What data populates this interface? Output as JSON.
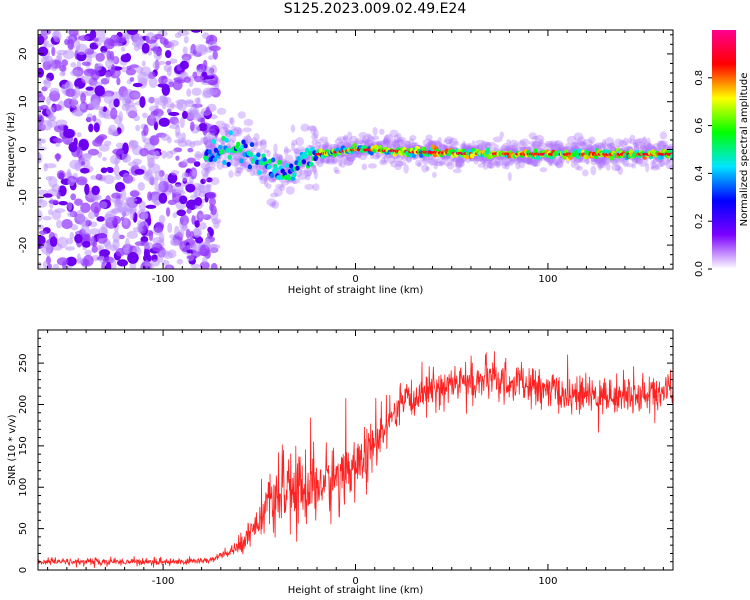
{
  "title": "S125.2023.009.02.49.E24",
  "chart_data": [
    {
      "type": "heatmap",
      "xlabel": "Height of straight line (km)",
      "ylabel": "Frequency (Hz)",
      "xlim": [
        -165,
        165
      ],
      "ylim": [
        -25,
        25
      ],
      "xticks": [
        -100,
        0,
        100
      ],
      "yticks": [
        -20,
        -10,
        0,
        10,
        20
      ],
      "colorbar": {
        "label": "Normalized spectral amplitude",
        "range": [
          0,
          1
        ],
        "ticks": [
          0.0,
          0.2,
          0.4,
          0.6,
          0.8
        ],
        "tick_labels": [
          "0.0",
          "0.2",
          "0.4",
          "0.6",
          "0.8"
        ],
        "colormap": [
          "#ffffff",
          "#7b00ff",
          "#0000ff",
          "#00e5ff",
          "#00ff00",
          "#ffff00",
          "#ff0000",
          "#ff0090"
        ]
      },
      "features": {
        "noise_region_x": [
          -165,
          -78
        ],
        "signal_track": [
          {
            "x": -75,
            "y": 0.0
          },
          {
            "x": -65,
            "y": 0.5
          },
          {
            "x": -55,
            "y": -1.0
          },
          {
            "x": -45,
            "y": -4.0
          },
          {
            "x": -35,
            "y": -5.0
          },
          {
            "x": -28,
            "y": -2.0
          },
          {
            "x": -20,
            "y": -1.0
          },
          {
            "x": 0,
            "y": 0.0
          },
          {
            "x": 50,
            "y": -0.8
          },
          {
            "x": 100,
            "y": -1.0
          },
          {
            "x": 165,
            "y": -1.0
          }
        ]
      }
    },
    {
      "type": "line",
      "xlabel": "Height of straight line (km)",
      "ylabel": "SNR (10 * v/v)",
      "xlim": [
        -165,
        165
      ],
      "ylim": [
        0,
        290
      ],
      "xticks": [
        -100,
        0,
        100
      ],
      "yticks": [
        0,
        50,
        100,
        150,
        200,
        250
      ],
      "series": [
        {
          "color": "#ff2020",
          "x": [
            -165,
            -140,
            -110,
            -90,
            -75,
            -62,
            -55,
            -45,
            -35,
            -25,
            -15,
            -5,
            5,
            15,
            25,
            35,
            50,
            70,
            90,
            110,
            130,
            150,
            165
          ],
          "y": [
            10,
            10,
            10,
            10,
            12,
            25,
            45,
            80,
            95,
            100,
            105,
            120,
            135,
            170,
            200,
            215,
            225,
            230,
            222,
            212,
            210,
            212,
            218
          ],
          "spread": [
            4,
            4,
            4,
            4,
            4,
            8,
            15,
            28,
            38,
            45,
            40,
            38,
            30,
            25,
            22,
            22,
            22,
            22,
            22,
            20,
            20,
            20,
            20
          ]
        }
      ]
    }
  ]
}
